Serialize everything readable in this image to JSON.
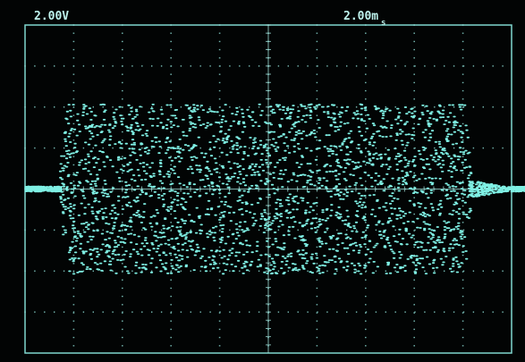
{
  "screen": {
    "volts_div": "2.00V",
    "time_div": {
      "value": "2.00m",
      "unit": "s"
    }
  }
}
